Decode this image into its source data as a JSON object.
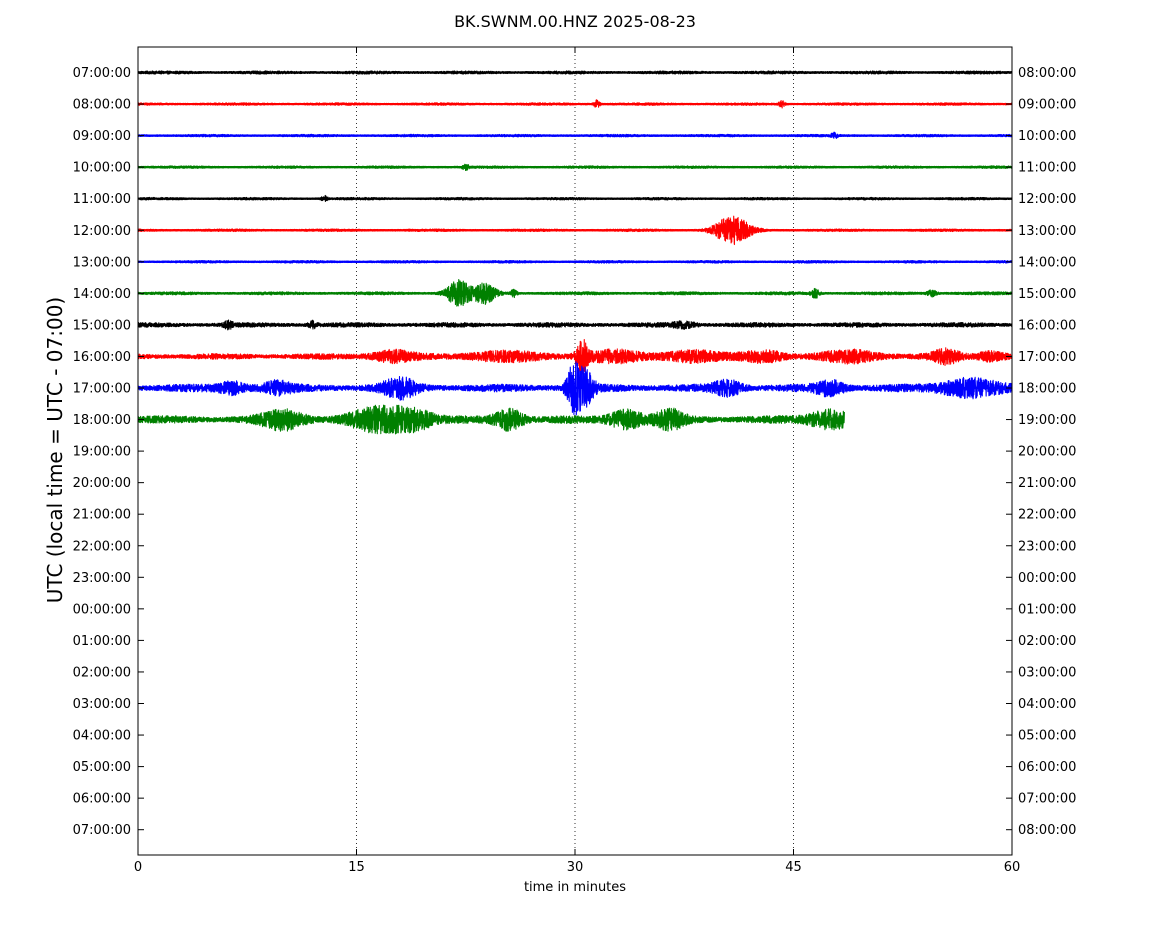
{
  "chart_data": {
    "type": "line",
    "title": "BK.SWNM.00.HNZ 2025-08-23",
    "xlabel": "time in minutes",
    "ylabel": "UTC (local time = UTC - 07:00)",
    "xlim": [
      0,
      60
    ],
    "x_ticks": [
      0,
      15,
      30,
      45,
      60
    ],
    "x_tick_labels": [
      "0",
      "15",
      "30",
      "45",
      "60"
    ],
    "vertical_grid_at": [
      15,
      30,
      45
    ],
    "grid": "vertical dotted",
    "left_tick_labels": [
      "07:00:00",
      "08:00:00",
      "09:00:00",
      "10:00:00",
      "11:00:00",
      "12:00:00",
      "13:00:00",
      "14:00:00",
      "15:00:00",
      "16:00:00",
      "17:00:00",
      "18:00:00",
      "19:00:00",
      "20:00:00",
      "21:00:00",
      "22:00:00",
      "23:00:00",
      "00:00:00",
      "01:00:00",
      "02:00:00",
      "03:00:00",
      "04:00:00",
      "05:00:00",
      "06:00:00",
      "07:00:00"
    ],
    "right_tick_labels": [
      "08:00:00",
      "09:00:00",
      "10:00:00",
      "11:00:00",
      "12:00:00",
      "13:00:00",
      "14:00:00",
      "15:00:00",
      "16:00:00",
      "17:00:00",
      "18:00:00",
      "19:00:00",
      "20:00:00",
      "21:00:00",
      "22:00:00",
      "23:00:00",
      "00:00:00",
      "01:00:00",
      "02:00:00",
      "03:00:00",
      "04:00:00",
      "05:00:00",
      "06:00:00",
      "07:00:00",
      "08:00:00"
    ],
    "color_cycle": [
      "#000000",
      "#ff0000",
      "#0000ff",
      "#008000"
    ],
    "series": [
      {
        "hour_index": 0,
        "color": "#000000",
        "end_minute": 60,
        "base_amp": 0.12,
        "bursts": []
      },
      {
        "hour_index": 1,
        "color": "#ff0000",
        "end_minute": 60,
        "base_amp": 0.1,
        "bursts": [
          {
            "t": 31.5,
            "amp": 0.35,
            "dur": 0.2
          },
          {
            "t": 44.2,
            "amp": 0.3,
            "dur": 0.2
          }
        ]
      },
      {
        "hour_index": 2,
        "color": "#0000ff",
        "end_minute": 60,
        "base_amp": 0.1,
        "bursts": [
          {
            "t": 47.8,
            "amp": 0.3,
            "dur": 0.2
          }
        ]
      },
      {
        "hour_index": 3,
        "color": "#008000",
        "end_minute": 60,
        "base_amp": 0.1,
        "bursts": [
          {
            "t": 22.5,
            "amp": 0.3,
            "dur": 0.2
          }
        ]
      },
      {
        "hour_index": 4,
        "color": "#000000",
        "end_minute": 60,
        "base_amp": 0.1,
        "bursts": [
          {
            "t": 12.8,
            "amp": 0.3,
            "dur": 0.2
          }
        ]
      },
      {
        "hour_index": 5,
        "color": "#ff0000",
        "end_minute": 60,
        "base_amp": 0.1,
        "bursts": [
          {
            "t": 40.8,
            "amp": 1.3,
            "dur": 1.2
          }
        ]
      },
      {
        "hour_index": 6,
        "color": "#0000ff",
        "end_minute": 60,
        "base_amp": 0.1,
        "bursts": []
      },
      {
        "hour_index": 7,
        "color": "#008000",
        "end_minute": 60,
        "base_amp": 0.12,
        "bursts": [
          {
            "t": 22.0,
            "amp": 1.2,
            "dur": 0.8
          },
          {
            "t": 23.8,
            "amp": 0.9,
            "dur": 0.8
          },
          {
            "t": 25.8,
            "amp": 0.35,
            "dur": 0.2
          },
          {
            "t": 46.5,
            "amp": 0.4,
            "dur": 0.3
          },
          {
            "t": 54.5,
            "amp": 0.3,
            "dur": 0.3
          }
        ]
      },
      {
        "hour_index": 8,
        "color": "#000000",
        "end_minute": 60,
        "base_amp": 0.18,
        "bursts": [
          {
            "t": 6.2,
            "amp": 0.3,
            "dur": 0.3
          },
          {
            "t": 12.0,
            "amp": 0.3,
            "dur": 0.3
          },
          {
            "t": 37.5,
            "amp": 0.25,
            "dur": 0.8
          }
        ]
      },
      {
        "hour_index": 9,
        "color": "#ff0000",
        "end_minute": 60,
        "base_amp": 0.22,
        "bursts": [
          {
            "t": 17.5,
            "amp": 0.5,
            "dur": 1.5
          },
          {
            "t": 25.0,
            "amp": 0.4,
            "dur": 2.5
          },
          {
            "t": 30.5,
            "amp": 1.4,
            "dur": 0.4
          },
          {
            "t": 32.5,
            "amp": 0.5,
            "dur": 2.0
          },
          {
            "t": 38.0,
            "amp": 0.5,
            "dur": 2.0
          },
          {
            "t": 43.0,
            "amp": 0.5,
            "dur": 1.5
          },
          {
            "t": 49.0,
            "amp": 0.5,
            "dur": 2.0
          },
          {
            "t": 55.5,
            "amp": 0.6,
            "dur": 1.0
          },
          {
            "t": 58.5,
            "amp": 0.4,
            "dur": 1.0
          }
        ]
      },
      {
        "hour_index": 10,
        "color": "#0000ff",
        "end_minute": 60,
        "base_amp": 0.3,
        "bursts": [
          {
            "t": 6.5,
            "amp": 0.5,
            "dur": 1.0
          },
          {
            "t": 9.5,
            "amp": 0.5,
            "dur": 1.0
          },
          {
            "t": 18.0,
            "amp": 0.8,
            "dur": 1.2
          },
          {
            "t": 29.9,
            "amp": 2.0,
            "dur": 0.5
          },
          {
            "t": 30.7,
            "amp": 1.5,
            "dur": 0.6
          },
          {
            "t": 40.5,
            "amp": 0.6,
            "dur": 1.0
          },
          {
            "t": 47.5,
            "amp": 0.6,
            "dur": 1.0
          },
          {
            "t": 57.0,
            "amp": 0.8,
            "dur": 2.0
          }
        ]
      },
      {
        "hour_index": 11,
        "color": "#008000",
        "end_minute": 48.5,
        "base_amp": 0.3,
        "bursts": [
          {
            "t": 10.0,
            "amp": 0.8,
            "dur": 1.5
          },
          {
            "t": 16.5,
            "amp": 1.0,
            "dur": 2.0
          },
          {
            "t": 19.0,
            "amp": 0.8,
            "dur": 1.5
          },
          {
            "t": 25.5,
            "amp": 0.9,
            "dur": 1.0
          },
          {
            "t": 33.5,
            "amp": 0.8,
            "dur": 1.2
          },
          {
            "t": 36.5,
            "amp": 0.8,
            "dur": 1.0
          },
          {
            "t": 47.5,
            "amp": 0.8,
            "dur": 1.5
          }
        ]
      }
    ]
  }
}
